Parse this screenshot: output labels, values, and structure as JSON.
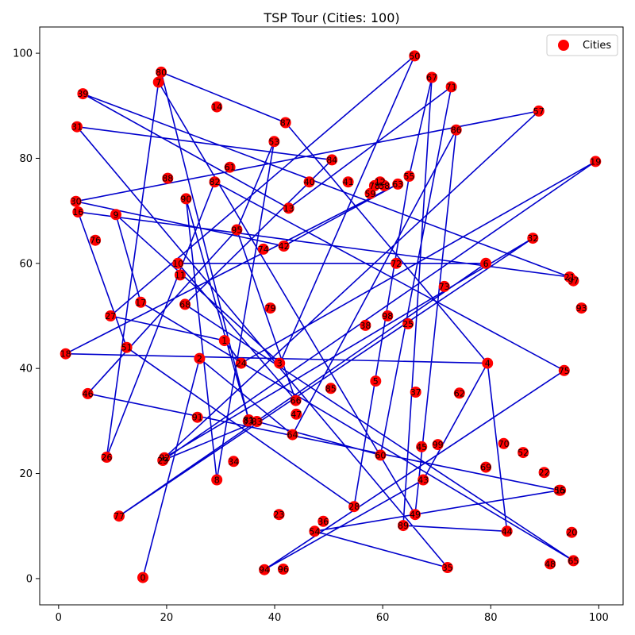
{
  "chart_data": {
    "type": "scatter",
    "title": "TSP Tour (Cities: 100)",
    "xlabel": "",
    "ylabel": "",
    "xlim": [
      -3.5,
      104.5
    ],
    "ylim": [
      -5,
      105
    ],
    "xticks": [
      0,
      20,
      40,
      60,
      80,
      100
    ],
    "yticks": [
      0,
      20,
      40,
      60,
      80,
      100
    ],
    "grid": false,
    "legend": {
      "position": "top-right",
      "entries": [
        "Cities"
      ]
    },
    "colors": {
      "points": "#ff0000",
      "tour": "#0000cc"
    },
    "cities": [
      {
        "id": "0",
        "x": 15.6,
        "y": 0.2
      },
      {
        "id": "1",
        "x": 30.7,
        "y": 45.3
      },
      {
        "id": "2",
        "x": 26.1,
        "y": 41.9
      },
      {
        "id": "3",
        "x": 40.9,
        "y": 41.0
      },
      {
        "id": "4",
        "x": 79.4,
        "y": 41.0
      },
      {
        "id": "5",
        "x": 58.7,
        "y": 37.6
      },
      {
        "id": "6",
        "x": 79.1,
        "y": 60.0
      },
      {
        "id": "7",
        "x": 18.5,
        "y": 94.5
      },
      {
        "id": "8",
        "x": 29.3,
        "y": 18.8
      },
      {
        "id": "9",
        "x": 10.6,
        "y": 69.3
      },
      {
        "id": "10",
        "x": 22.1,
        "y": 60.0
      },
      {
        "id": "11",
        "x": 22.5,
        "y": 57.8
      },
      {
        "id": "12",
        "x": 59.5,
        "y": 75.5
      },
      {
        "id": "13",
        "x": 42.6,
        "y": 70.5
      },
      {
        "id": "14",
        "x": 29.3,
        "y": 89.8
      },
      {
        "id": "15",
        "x": 92.9,
        "y": 16.8
      },
      {
        "id": "16",
        "x": 3.6,
        "y": 69.8
      },
      {
        "id": "17",
        "x": 15.2,
        "y": 52.6
      },
      {
        "id": "18",
        "x": 1.3,
        "y": 42.8
      },
      {
        "id": "19",
        "x": 99.4,
        "y": 79.4
      },
      {
        "id": "20",
        "x": 95.0,
        "y": 8.8
      },
      {
        "id": "21",
        "x": 94.6,
        "y": 57.4
      },
      {
        "id": "22",
        "x": 89.9,
        "y": 20.2
      },
      {
        "id": "23",
        "x": 40.8,
        "y": 12.2
      },
      {
        "id": "24",
        "x": 33.8,
        "y": 41.0
      },
      {
        "id": "25",
        "x": 64.7,
        "y": 48.5
      },
      {
        "id": "26",
        "x": 8.9,
        "y": 23.1
      },
      {
        "id": "27",
        "x": 9.6,
        "y": 50.0
      },
      {
        "id": "28",
        "x": 54.7,
        "y": 13.7
      },
      {
        "id": "29",
        "x": 19.3,
        "y": 22.5
      },
      {
        "id": "30",
        "x": 3.2,
        "y": 71.8
      },
      {
        "id": "31",
        "x": 3.4,
        "y": 86.0
      },
      {
        "id": "32",
        "x": 87.8,
        "y": 64.8
      },
      {
        "id": "33",
        "x": 35.1,
        "y": 30.0
      },
      {
        "id": "34",
        "x": 32.4,
        "y": 22.3
      },
      {
        "id": "35",
        "x": 72.0,
        "y": 2.1
      },
      {
        "id": "36",
        "x": 49.0,
        "y": 10.9
      },
      {
        "id": "37",
        "x": 66.1,
        "y": 35.5
      },
      {
        "id": "38",
        "x": 56.8,
        "y": 48.2
      },
      {
        "id": "39",
        "x": 4.5,
        "y": 92.3
      },
      {
        "id": "40",
        "x": 46.4,
        "y": 75.5
      },
      {
        "id": "41",
        "x": 53.6,
        "y": 75.5
      },
      {
        "id": "42",
        "x": 41.7,
        "y": 63.3
      },
      {
        "id": "43",
        "x": 67.5,
        "y": 18.8
      },
      {
        "id": "44",
        "x": 83.0,
        "y": 9.0
      },
      {
        "id": "45",
        "x": 67.2,
        "y": 25.1
      },
      {
        "id": "46",
        "x": 5.4,
        "y": 35.2
      },
      {
        "id": "47",
        "x": 44.0,
        "y": 31.3
      },
      {
        "id": "48",
        "x": 91.0,
        "y": 2.8
      },
      {
        "id": "49",
        "x": 66.0,
        "y": 12.2
      },
      {
        "id": "50",
        "x": 65.9,
        "y": 99.5
      },
      {
        "id": "51",
        "x": 12.6,
        "y": 44.0
      },
      {
        "id": "52",
        "x": 86.0,
        "y": 24.0
      },
      {
        "id": "53",
        "x": 39.9,
        "y": 83.2
      },
      {
        "id": "54",
        "x": 47.4,
        "y": 9.0
      },
      {
        "id": "55",
        "x": 64.9,
        "y": 76.6
      },
      {
        "id": "56",
        "x": 92.7,
        "y": 16.8
      },
      {
        "id": "57",
        "x": 88.9,
        "y": 89.0
      },
      {
        "id": "58",
        "x": 60.3,
        "y": 74.8
      },
      {
        "id": "59",
        "x": 57.7,
        "y": 73.3
      },
      {
        "id": "60",
        "x": 59.6,
        "y": 23.5
      },
      {
        "id": "61",
        "x": 31.7,
        "y": 78.3
      },
      {
        "id": "62",
        "x": 74.2,
        "y": 35.3
      },
      {
        "id": "63",
        "x": 62.8,
        "y": 75.1
      },
      {
        "id": "64",
        "x": 43.3,
        "y": 27.4
      },
      {
        "id": "65",
        "x": 95.3,
        "y": 3.4
      },
      {
        "id": "66",
        "x": 43.9,
        "y": 33.9
      },
      {
        "id": "67",
        "x": 69.1,
        "y": 95.4
      },
      {
        "id": "68",
        "x": 23.4,
        "y": 52.2
      },
      {
        "id": "69",
        "x": 79.1,
        "y": 21.2
      },
      {
        "id": "70",
        "x": 82.4,
        "y": 25.7
      },
      {
        "id": "71",
        "x": 72.7,
        "y": 93.6
      },
      {
        "id": "72",
        "x": 62.5,
        "y": 60.0
      },
      {
        "id": "73",
        "x": 71.4,
        "y": 55.6
      },
      {
        "id": "74",
        "x": 37.9,
        "y": 62.7
      },
      {
        "id": "75",
        "x": 93.6,
        "y": 39.6
      },
      {
        "id": "76",
        "x": 6.8,
        "y": 64.4
      },
      {
        "id": "77",
        "x": 11.2,
        "y": 11.9
      },
      {
        "id": "78",
        "x": 58.5,
        "y": 74.8
      },
      {
        "id": "79",
        "x": 39.2,
        "y": 51.5
      },
      {
        "id": "80",
        "x": 19.0,
        "y": 96.4
      },
      {
        "id": "81",
        "x": 35.2,
        "y": 30.2
      },
      {
        "id": "82",
        "x": 28.9,
        "y": 75.5
      },
      {
        "id": "83",
        "x": 36.7,
        "y": 29.9
      },
      {
        "id": "84",
        "x": 50.6,
        "y": 79.7
      },
      {
        "id": "85",
        "x": 50.4,
        "y": 36.2
      },
      {
        "id": "86",
        "x": 73.6,
        "y": 85.4
      },
      {
        "id": "87",
        "x": 42.0,
        "y": 86.8
      },
      {
        "id": "88",
        "x": 20.2,
        "y": 76.2
      },
      {
        "id": "89",
        "x": 63.8,
        "y": 10.1
      },
      {
        "id": "90",
        "x": 23.6,
        "y": 72.3
      },
      {
        "id": "91",
        "x": 25.7,
        "y": 30.7
      },
      {
        "id": "92",
        "x": 19.6,
        "y": 23.0
      },
      {
        "id": "93",
        "x": 96.8,
        "y": 51.5
      },
      {
        "id": "94",
        "x": 38.1,
        "y": 1.7
      },
      {
        "id": "95",
        "x": 33.0,
        "y": 66.4
      },
      {
        "id": "96",
        "x": 41.6,
        "y": 1.8
      },
      {
        "id": "97",
        "x": 95.3,
        "y": 56.7
      },
      {
        "id": "98",
        "x": 60.9,
        "y": 50.0
      },
      {
        "id": "99",
        "x": 70.2,
        "y": 25.5
      }
    ],
    "tour": [
      [
        15.6,
        0.2
      ],
      [
        26.1,
        41.9
      ],
      [
        43.3,
        27.4
      ],
      [
        73.6,
        85.4
      ],
      [
        66.0,
        12.2
      ],
      [
        18.5,
        94.5
      ],
      [
        8.9,
        23.1
      ],
      [
        28.9,
        75.5
      ],
      [
        93.6,
        39.6
      ],
      [
        38.1,
        1.7
      ],
      [
        67.5,
        18.8
      ],
      [
        79.4,
        41.0
      ],
      [
        1.3,
        42.8
      ],
      [
        62.8,
        75.1
      ],
      [
        41.7,
        63.3
      ],
      [
        3.2,
        71.8
      ],
      [
        88.9,
        89.0
      ],
      [
        19.6,
        23.0
      ],
      [
        87.8,
        64.8
      ],
      [
        11.2,
        11.9
      ],
      [
        79.1,
        60.0
      ],
      [
        22.1,
        60.0
      ],
      [
        43.9,
        33.9
      ],
      [
        33.0,
        66.4
      ],
      [
        5.4,
        35.2
      ],
      [
        92.7,
        16.8
      ],
      [
        47.4,
        9.0
      ],
      [
        72.0,
        2.1
      ],
      [
        3.4,
        86.0
      ],
      [
        50.6,
        79.7
      ],
      [
        23.4,
        52.2
      ],
      [
        95.3,
        3.4
      ],
      [
        15.2,
        52.6
      ],
      [
        10.6,
        69.3
      ],
      [
        41.0,
        41.0
      ],
      [
        65.9,
        99.5
      ],
      [
        9.6,
        50.0
      ],
      [
        30.7,
        45.3
      ],
      [
        33.8,
        41.0
      ],
      [
        99.4,
        79.4
      ],
      [
        19.3,
        22.5
      ],
      [
        36.7,
        29.9
      ],
      [
        59.6,
        23.5
      ],
      [
        72.7,
        93.6
      ],
      [
        42.6,
        70.5
      ],
      [
        4.5,
        92.3
      ],
      [
        94.6,
        57.4
      ],
      [
        3.6,
        69.8
      ],
      [
        12.6,
        44.0
      ],
      [
        54.7,
        13.7
      ],
      [
        64.9,
        76.6
      ],
      [
        69.1,
        95.4
      ],
      [
        63.8,
        10.1
      ],
      [
        83.0,
        9.0
      ],
      [
        79.4,
        41.0
      ],
      [
        42.0,
        86.8
      ],
      [
        19.0,
        96.4
      ],
      [
        35.2,
        30.2
      ],
      [
        23.6,
        72.3
      ],
      [
        29.3,
        18.8
      ],
      [
        39.9,
        83.2
      ],
      [
        33.0,
        66.4
      ]
    ]
  }
}
